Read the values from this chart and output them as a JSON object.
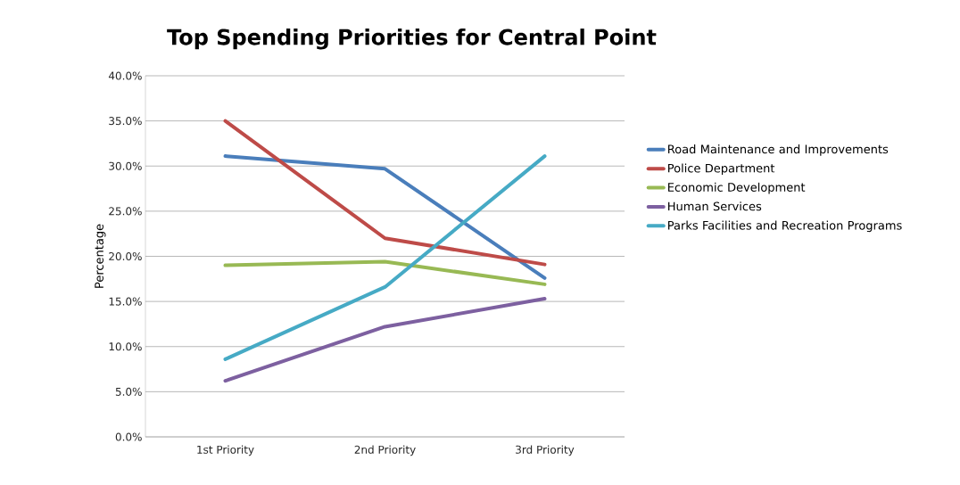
{
  "chart_data": {
    "type": "line",
    "title": "Top Spending Priorities for Central Point",
    "ylabel": "Percentage",
    "categories": [
      "1st Priority",
      "2nd Priority",
      "3rd Priority"
    ],
    "series": [
      {
        "name": "Road Maintenance and Improvements",
        "color": "#4a7ebb",
        "values": [
          31.1,
          29.7,
          17.6
        ]
      },
      {
        "name": "Police Department",
        "color": "#be4b48",
        "values": [
          35.0,
          22.0,
          19.1
        ]
      },
      {
        "name": "Economic Development",
        "color": "#98b954",
        "values": [
          19.0,
          19.4,
          16.9
        ]
      },
      {
        "name": "Human Services",
        "color": "#7d60a0",
        "values": [
          6.2,
          12.2,
          15.3
        ]
      },
      {
        "name": "Parks Facilities and Recreation Programs",
        "color": "#46aac5",
        "values": [
          8.6,
          16.6,
          31.1
        ]
      }
    ],
    "ylim": [
      0,
      40
    ],
    "yticks": [
      {
        "value": 0,
        "label": "0.0%"
      },
      {
        "value": 5,
        "label": "5.0%"
      },
      {
        "value": 10,
        "label": "10.0%"
      },
      {
        "value": 15,
        "label": "15.0%"
      },
      {
        "value": 20,
        "label": "20.0%"
      },
      {
        "value": 25,
        "label": "25.0%"
      },
      {
        "value": 30,
        "label": "30.0%"
      },
      {
        "value": 35,
        "label": "35.0%"
      },
      {
        "value": 40,
        "label": "40.0%"
      }
    ],
    "grid": "y",
    "legend": "right",
    "marker": "none",
    "line_style": "solid"
  }
}
